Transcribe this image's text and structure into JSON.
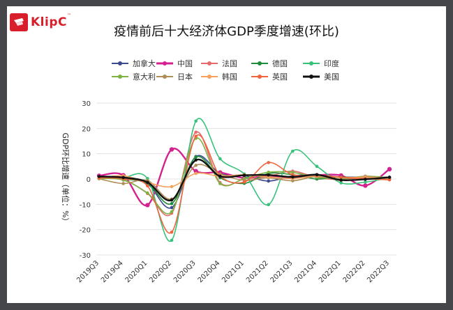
{
  "logo": {
    "text": "KlipC",
    "tm": "™"
  },
  "chart_data": {
    "type": "line",
    "title": "疫情前后十大经济体GDP季度增速(环比)",
    "ylabel": "GDP环比增速（单位：%）",
    "xlabel": "",
    "ylim": [
      -30,
      30
    ],
    "yticks": [
      -30,
      -20,
      -10,
      0,
      10,
      20,
      30
    ],
    "categories": [
      "2019Q3",
      "2019Q4",
      "2020Q1",
      "2020Q2",
      "2020Q3",
      "2020Q4",
      "2021Q1",
      "2021Q2",
      "2021Q3",
      "2021Q4",
      "2022Q1",
      "2022Q2",
      "2022Q3"
    ],
    "grid": true,
    "legend_position": "top",
    "series": [
      {
        "name": "加拿大",
        "color": "#3b4a8c",
        "values": [
          0.9,
          0.4,
          -1.9,
          -11.3,
          8.9,
          2.2,
          1.3,
          -0.8,
          1.3,
          1.6,
          0.8,
          0.8,
          0.7
        ]
      },
      {
        "name": "中国",
        "color": "#d3228f",
        "values": [
          1.3,
          1.5,
          -10.3,
          11.7,
          3.1,
          2.6,
          0.4,
          1.3,
          0.6,
          1.5,
          1.4,
          -2.6,
          3.9
        ]
      },
      {
        "name": "法国",
        "color": "#e36b6b",
        "values": [
          0.2,
          -0.2,
          -5.7,
          -13.5,
          18.5,
          -1.4,
          0.0,
          1.1,
          3.1,
          0.6,
          -0.2,
          0.5,
          0.2
        ]
      },
      {
        "name": "德国",
        "color": "#1e8c3a",
        "values": [
          0.3,
          0.0,
          -1.8,
          -9.7,
          8.7,
          0.5,
          -1.7,
          2.2,
          1.7,
          0.0,
          0.8,
          0.1,
          0.4
        ]
      },
      {
        "name": "印度",
        "color": "#37c27a",
        "values": [
          1.0,
          0.7,
          0.2,
          -24.2,
          22.9,
          8.0,
          2.0,
          -10.1,
          11.0,
          5.0,
          -1.5,
          -1.2,
          0.5
        ]
      },
      {
        "name": "意大利",
        "color": "#7cb342",
        "values": [
          0.2,
          -0.4,
          -5.5,
          -12.9,
          16.1,
          -1.8,
          0.2,
          2.7,
          2.6,
          0.7,
          0.1,
          1.1,
          0.5
        ]
      },
      {
        "name": "日本",
        "color": "#b08d57",
        "values": [
          0.1,
          -1.8,
          -0.6,
          -7.9,
          5.4,
          2.0,
          -0.5,
          0.5,
          -0.7,
          1.0,
          -0.5,
          1.1,
          -0.3
        ]
      },
      {
        "name": "韩国",
        "color": "#f5a25d",
        "values": [
          0.4,
          1.3,
          -1.3,
          -3.0,
          2.2,
          1.1,
          1.7,
          0.8,
          0.2,
          1.2,
          0.6,
          0.7,
          0.3
        ]
      },
      {
        "name": "英国",
        "color": "#f0633c",
        "values": [
          0.5,
          0.1,
          -2.7,
          -21.0,
          16.9,
          1.3,
          -1.2,
          6.5,
          1.7,
          1.5,
          0.7,
          0.1,
          -0.3
        ]
      },
      {
        "name": "美国",
        "color": "#111111",
        "values": [
          1.0,
          0.6,
          -1.3,
          -8.3,
          7.5,
          1.1,
          1.5,
          1.6,
          0.8,
          1.7,
          -0.4,
          -0.1,
          0.7
        ]
      }
    ]
  }
}
